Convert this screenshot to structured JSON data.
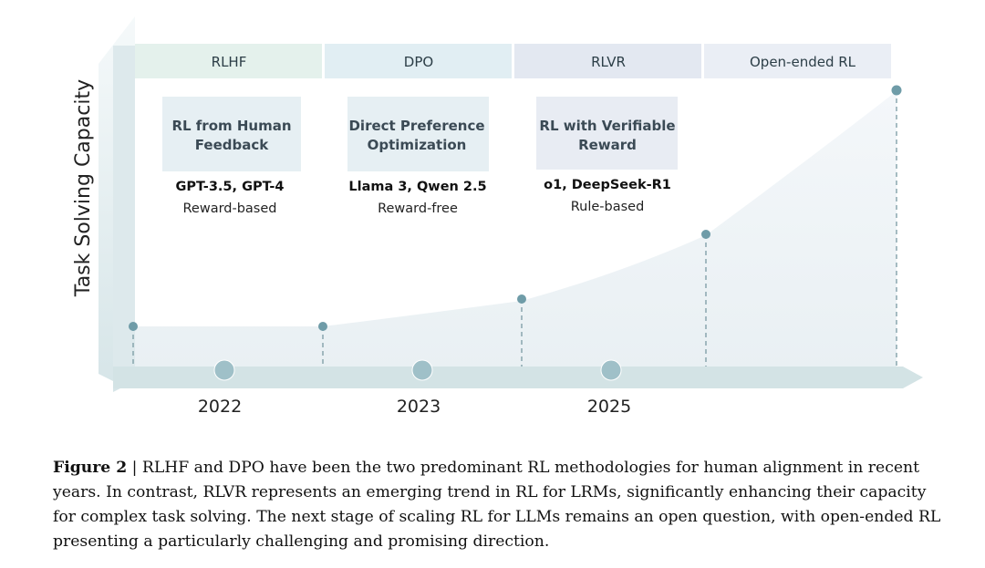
{
  "diagram": {
    "y_axis_label": "Task Solving Capacity",
    "stages": [
      {
        "label": "RLHF",
        "box_title_lines": [
          "RL from Human",
          "Feedback"
        ],
        "models": "GPT-3.5, GPT-4",
        "reward": "Reward-based",
        "color": "#e4f1ec"
      },
      {
        "label": "DPO",
        "box_title_lines": [
          "Direct Preference",
          "Optimization"
        ],
        "models": "Llama 3, Qwen 2.5",
        "reward": "Reward-free",
        "color": "#e1eef3"
      },
      {
        "label": "RLVR",
        "box_title_lines": [
          "RL with Verifiable",
          "Reward"
        ],
        "models": "o1, DeepSeek-R1",
        "reward": "Rule-based",
        "color": "#e3e8f1"
      },
      {
        "label": "Open-ended RL",
        "color": "#eaeef5"
      }
    ],
    "years": [
      "2022",
      "2023",
      "2025"
    ],
    "colors": {
      "axis": "#d3e3e5",
      "curve_fill": "#eef4f7",
      "marker": "#6f9ca8",
      "timeline_dot": "#9fc0c8"
    }
  },
  "caption": {
    "figure_label": "Figure 2",
    "text": " | RLHF and DPO have been the two predominant RL methodologies for human alignment in recent years. In contrast, RLVR represents an emerging trend in RL for LRMs, significantly enhancing their capacity for complex task solving.  The next stage of scaling RL for LLMs remains an open question, with open-ended RL presenting a particularly challenging and promising direction."
  }
}
